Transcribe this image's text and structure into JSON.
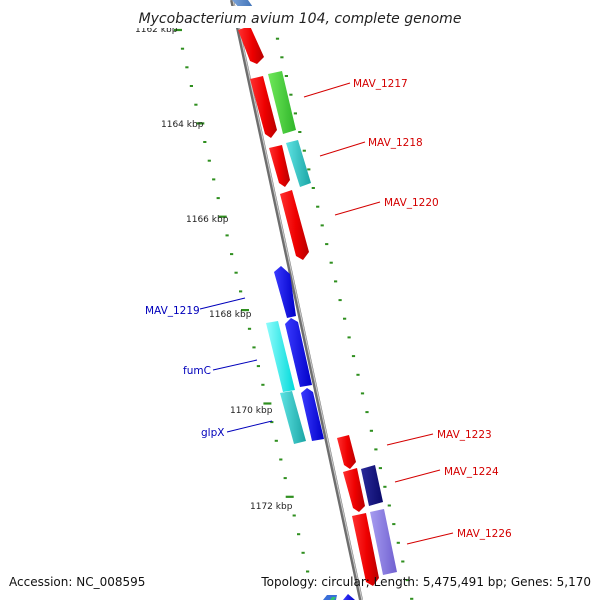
{
  "title": "Mycobacterium avium 104, complete genome",
  "footer": {
    "accession": "Accession: NC_008595",
    "topology": "Topology: circular; Length: 5,475,491 bp; Genes: 5,170"
  },
  "colors": {
    "backbone": "#8a8a8a",
    "ticks": "#2f8f1f",
    "label_red": "#d40000",
    "label_blue": "#0000bb"
  },
  "kbp_labels": [
    "1162 kbp",
    "1164 kbp",
    "1166 kbp",
    "1168 kbp",
    "1170 kbp",
    "1172 kbp"
  ],
  "gene_labels": [
    {
      "text": "MAV_1217",
      "color": "#d40000"
    },
    {
      "text": "MAV_1218",
      "color": "#d40000"
    },
    {
      "text": "MAV_1220",
      "color": "#d40000"
    },
    {
      "text": "MAV_1219",
      "color": "#0000bb"
    },
    {
      "text": "fumC",
      "color": "#0000bb"
    },
    {
      "text": "glpX",
      "color": "#0000bb"
    },
    {
      "text": "MAV_1223",
      "color": "#d40000"
    },
    {
      "text": "MAV_1224",
      "color": "#d40000"
    },
    {
      "text": "MAV_1226",
      "color": "#d40000"
    }
  ]
}
